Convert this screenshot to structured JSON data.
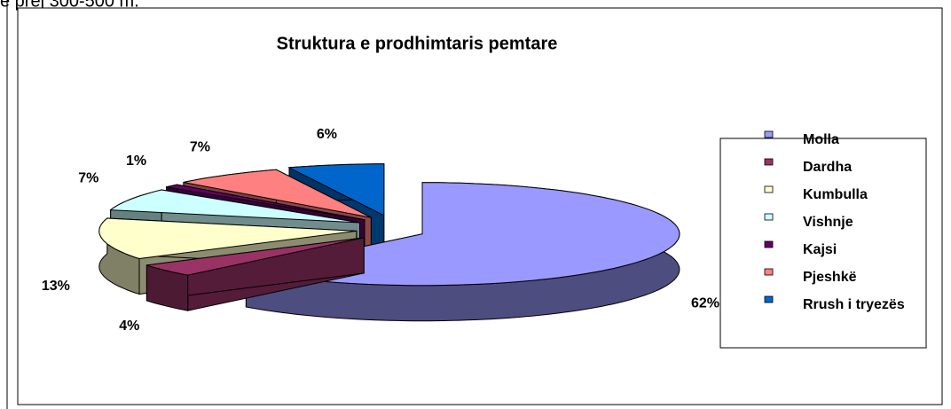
{
  "caption": "e prej 300-500 m.",
  "chart_data": {
    "type": "pie3d",
    "title": "Struktura e prodhimtaris pemtare",
    "categories": [
      "Molla",
      "Dardha",
      "Kumbulla",
      "Vishnje",
      "Kajsi",
      "Pjeshkë",
      "Rrush i tryezës"
    ],
    "values": [
      62,
      4,
      13,
      7,
      1,
      7,
      6
    ],
    "value_labels": [
      "62%",
      "4%",
      "13%",
      "7%",
      "1%",
      "7%",
      "6%"
    ],
    "colors": [
      "#9999ff",
      "#993366",
      "#ffffcc",
      "#ccffff",
      "#660066",
      "#ff8080",
      "#0066cc"
    ],
    "legend": "right"
  }
}
